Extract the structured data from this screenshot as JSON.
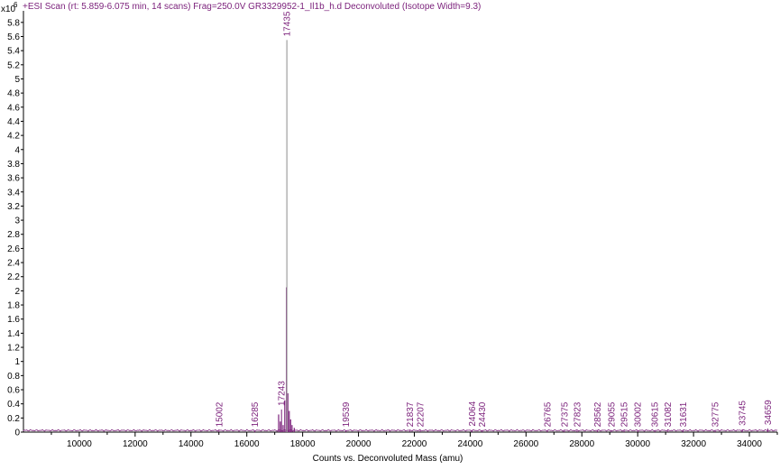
{
  "chart_data": {
    "type": "line",
    "title": "+ESI Scan (rt: 5.859-6.075 min, 14 scans) Frag=250.0V GR3329952-1_Il1b_h.d  Deconvoluted (Isotope Width=9.3)",
    "xlabel": "Counts vs. Deconvoluted Mass (amu)",
    "y_multiplier": "x10",
    "y_exponent": "6",
    "xlim": [
      8000,
      35000
    ],
    "ylim": [
      0,
      5.9
    ],
    "x_ticks": [
      "10000",
      "12000",
      "14000",
      "16000",
      "18000",
      "20000",
      "22000",
      "24000",
      "26000",
      "28000",
      "30000",
      "32000",
      "34000"
    ],
    "y_ticks": [
      "0",
      "0.2",
      "0.4",
      "0.6",
      "0.8",
      "1",
      "1.2",
      "1.4",
      "1.6",
      "1.8",
      "2",
      "2.2",
      "2.4",
      "2.6",
      "2.8",
      "3",
      "3.2",
      "3.4",
      "3.6",
      "3.8",
      "4",
      "4.2",
      "4.4",
      "4.6",
      "4.8",
      "5",
      "5.2",
      "5.4",
      "5.6",
      "5.8"
    ],
    "grid": false,
    "colors": {
      "trace": "#7a1f7a",
      "axis": "#000000",
      "main_peak": "#a0a0a0"
    },
    "peaks": [
      {
        "mass": 15002,
        "intensity": 0.02,
        "label": "15002"
      },
      {
        "mass": 16285,
        "intensity": 0.02,
        "label": "16285"
      },
      {
        "mass": 17243,
        "intensity": 0.32,
        "label": "17243"
      },
      {
        "mass": 17435,
        "intensity": 5.55,
        "label": "17435"
      },
      {
        "mass": 19539,
        "intensity": 0.02,
        "label": "19539"
      },
      {
        "mass": 21837,
        "intensity": 0.02,
        "label": "21837"
      },
      {
        "mass": 22207,
        "intensity": 0.02,
        "label": "22207"
      },
      {
        "mass": 24064,
        "intensity": 0.03,
        "label": "24064"
      },
      {
        "mass": 24430,
        "intensity": 0.02,
        "label": "24430"
      },
      {
        "mass": 26765,
        "intensity": 0.02,
        "label": "26765"
      },
      {
        "mass": 27375,
        "intensity": 0.02,
        "label": "27375"
      },
      {
        "mass": 27823,
        "intensity": 0.02,
        "label": "27823"
      },
      {
        "mass": 28562,
        "intensity": 0.02,
        "label": "28562"
      },
      {
        "mass": 29055,
        "intensity": 0.02,
        "label": "29055"
      },
      {
        "mass": 29515,
        "intensity": 0.02,
        "label": "29515"
      },
      {
        "mass": 30002,
        "intensity": 0.02,
        "label": "30002"
      },
      {
        "mass": 30615,
        "intensity": 0.02,
        "label": "30615"
      },
      {
        "mass": 31082,
        "intensity": 0.02,
        "label": "31082"
      },
      {
        "mass": 31631,
        "intensity": 0.02,
        "label": "31631"
      },
      {
        "mass": 32775,
        "intensity": 0.02,
        "label": "32775"
      },
      {
        "mass": 33745,
        "intensity": 0.04,
        "label": "33745"
      },
      {
        "mass": 34659,
        "intensity": 0.05,
        "label": "34659"
      }
    ],
    "cluster_peaks": [
      {
        "mass": 17140,
        "intensity": 0.25
      },
      {
        "mass": 17200,
        "intensity": 0.15
      },
      {
        "mass": 17300,
        "intensity": 0.1
      },
      {
        "mass": 17360,
        "intensity": 0.45
      },
      {
        "mass": 17420,
        "intensity": 2.05
      },
      {
        "mass": 17470,
        "intensity": 0.55
      },
      {
        "mass": 17520,
        "intensity": 0.3
      },
      {
        "mass": 17570,
        "intensity": 0.18
      },
      {
        "mass": 17620,
        "intensity": 0.1
      },
      {
        "mass": 17700,
        "intensity": 0.06
      }
    ]
  }
}
